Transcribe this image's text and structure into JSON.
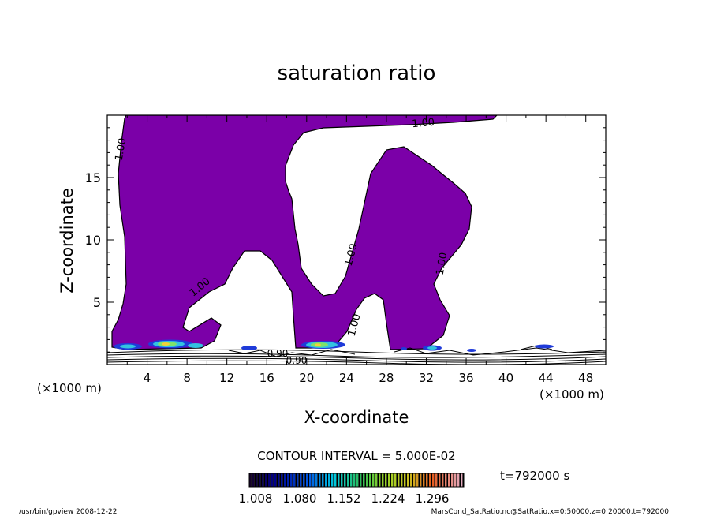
{
  "chart_data": {
    "type": "contour",
    "title": "saturation ratio",
    "xlabel": "X-coordinate",
    "ylabel": "Z-coordinate",
    "x_unit": "(×1000 m)",
    "z_unit": "(×1000 m)",
    "xlim": [
      0,
      50
    ],
    "ylim": [
      0,
      20
    ],
    "x_ticks": [
      "4",
      "8",
      "12",
      "16",
      "20",
      "24",
      "28",
      "32",
      "36",
      "40",
      "44",
      "48"
    ],
    "y_ticks": [
      "5",
      "10",
      "15"
    ],
    "fill_color": "#7b00a8",
    "contour_label_main": "1.00",
    "contour_label_low": "0.90",
    "contour_interval_text": "CONTOUR INTERVAL = 5.000E-02",
    "time_text": "t=792000 s",
    "colorbar_ticks": [
      "1.008",
      "1.080",
      "1.152",
      "1.224",
      "1.296"
    ],
    "footer_left": "/usr/bin/gpview   2008-12-22",
    "footer_right": "MarsCond_SatRatio.nc@SatRatio,x=0:50000,z=0:20000,t=792000"
  }
}
